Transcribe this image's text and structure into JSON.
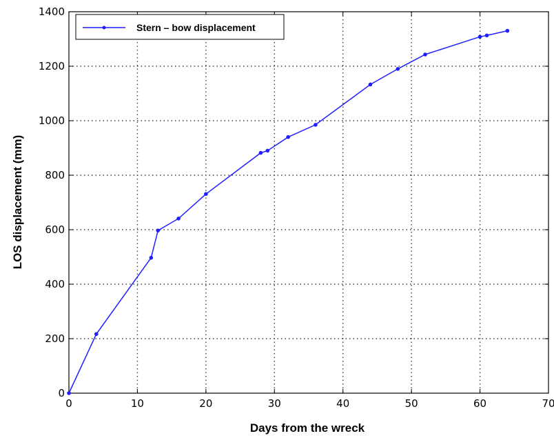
{
  "chart_data": {
    "type": "line",
    "xlabel": "Days from the wreck",
    "ylabel": "LOS displacement (mm)",
    "xlim": [
      0,
      70
    ],
    "ylim": [
      0,
      1400
    ],
    "xticks": [
      0,
      10,
      20,
      30,
      40,
      50,
      60,
      70
    ],
    "yticks": [
      0,
      200,
      400,
      600,
      800,
      1000,
      1200,
      1400
    ],
    "grid": true,
    "legend_position": "top-left",
    "series": [
      {
        "name": "Stern – bow displacement",
        "color": "#1f1fff",
        "marker": "dot",
        "points": [
          [
            0,
            0
          ],
          [
            4,
            217
          ],
          [
            12,
            497
          ],
          [
            13,
            597
          ],
          [
            16,
            641
          ],
          [
            20,
            731
          ],
          [
            28,
            882
          ],
          [
            29,
            890
          ],
          [
            32,
            940
          ],
          [
            36,
            985
          ],
          [
            44,
            1133
          ],
          [
            48,
            1190
          ],
          [
            52,
            1243
          ],
          [
            60,
            1308
          ],
          [
            61,
            1313
          ],
          [
            64,
            1330
          ]
        ]
      }
    ]
  }
}
